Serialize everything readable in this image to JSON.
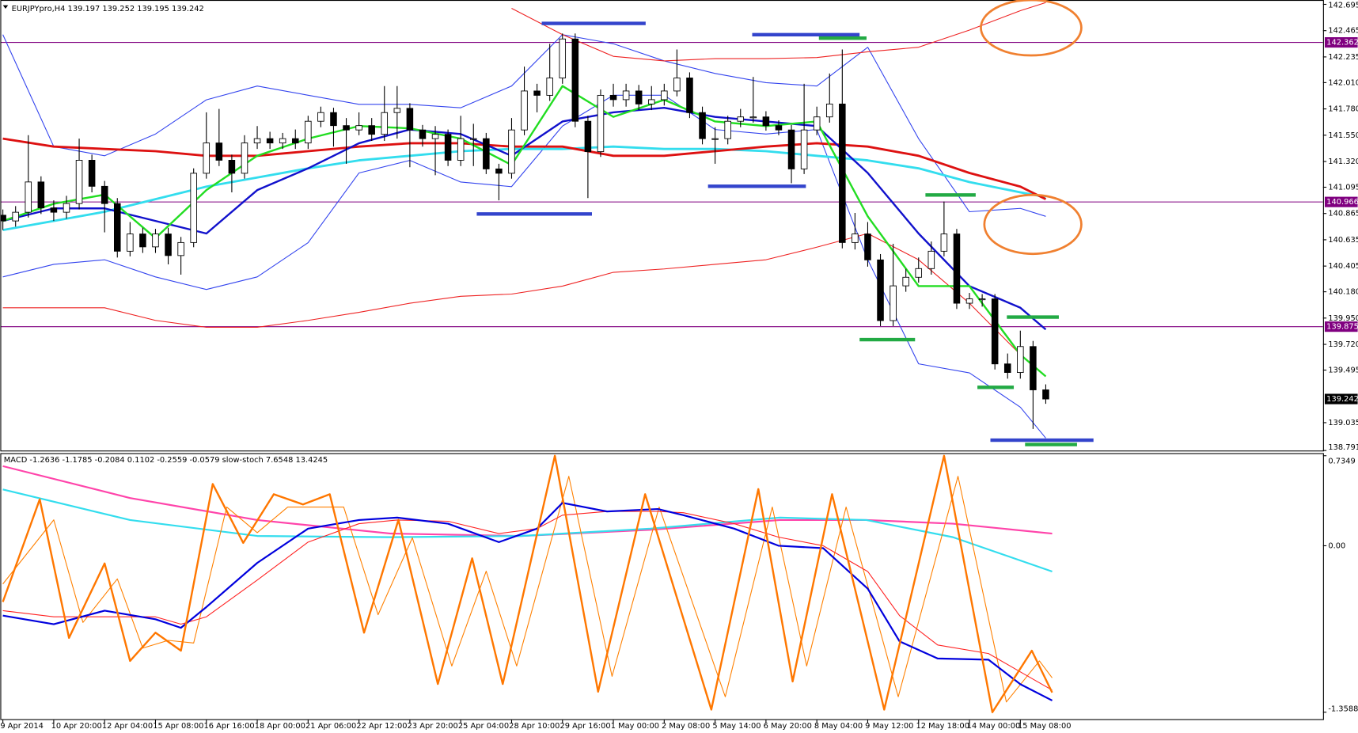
{
  "chart_data": [
    {
      "type": "candlestick",
      "title": "EURJPYpro,H4  139.197 139.252 139.195 139.242",
      "xlim": [
        -0.2,
        103.8
      ],
      "ylim": [
        138.791,
        142.733
      ],
      "yticks": [
        142.695,
        142.465,
        142.235,
        {
          "value": 142.01,
          "label": "142.010"
        },
        {
          "value": 141.78,
          "label": "141.780"
        },
        {
          "value": 141.55,
          "label": "141.550"
        },
        {
          "value": 141.32,
          "label": "141.320"
        },
        141.095,
        140.865,
        140.635,
        140.405,
        {
          "value": 140.18,
          "label": "140.180"
        },
        {
          "value": 139.95,
          "label": "139.950"
        },
        {
          "value": 139.72,
          "label": "139.720"
        },
        139.495,
        139.035,
        138.791
      ],
      "grid": false,
      "up_color": "#ffffff",
      "down_color": "#000000",
      "hlines": [
        142.362,
        140.966,
        139.875
      ],
      "hline_color": "#800080",
      "candles": {
        "open": [
          140.85,
          140.8,
          140.876,
          141.141,
          140.914,
          140.876,
          140.952,
          141.331,
          141.103,
          140.952,
          140.535,
          140.686,
          140.573,
          140.686,
          140.497,
          140.611,
          141.217,
          141.482,
          141.331,
          141.217,
          141.482,
          141.52,
          141.482,
          141.52,
          141.482,
          141.672,
          141.748,
          141.634,
          141.596,
          141.634,
          141.558,
          141.748,
          141.785,
          141.596,
          141.52,
          141.558,
          141.331,
          141.52,
          141.52,
          141.255,
          141.217,
          141.596,
          141.937,
          141.899,
          142.051,
          142.392,
          141.672,
          141.406,
          141.899,
          141.861,
          141.937,
          141.823,
          141.861,
          141.937,
          142.051,
          141.748,
          141.52,
          141.52,
          141.672,
          141.71,
          141.71,
          141.634,
          141.596,
          141.255,
          141.596,
          141.71,
          141.823,
          140.611,
          140.686,
          140.459,
          139.928,
          140.232,
          140.307,
          140.383,
          140.535,
          140.686,
          140.08,
          140.118,
          140.118,
          139.549,
          139.474,
          139.701,
          139.322
        ],
        "high": [
          140.9,
          140.93,
          141.55,
          141.19,
          140.98,
          141.02,
          141.52,
          141.38,
          141.15,
          141.0,
          140.79,
          140.74,
          140.73,
          140.74,
          140.66,
          141.26,
          141.75,
          141.78,
          141.38,
          141.55,
          141.63,
          141.58,
          141.57,
          141.6,
          141.72,
          141.8,
          141.79,
          141.7,
          141.75,
          141.7,
          141.98,
          141.98,
          141.83,
          141.64,
          141.63,
          141.6,
          141.72,
          141.65,
          141.57,
          141.3,
          141.7,
          142.15,
          142.0,
          142.35,
          142.44,
          142.44,
          141.72,
          141.95,
          142.0,
          142.0,
          141.99,
          141.98,
          142.0,
          142.3,
          142.1,
          141.8,
          141.62,
          141.72,
          141.78,
          142.06,
          141.76,
          141.68,
          141.64,
          142.0,
          141.8,
          142.09,
          142.3,
          140.87,
          140.79,
          140.51,
          140.6,
          140.38,
          140.48,
          140.62,
          140.97,
          140.73,
          140.17,
          140.16,
          140.16,
          139.64,
          139.84,
          139.75,
          139.37
        ],
        "low": [
          140.72,
          140.75,
          140.83,
          140.86,
          140.8,
          140.82,
          140.9,
          141.05,
          140.7,
          140.48,
          140.49,
          140.52,
          140.52,
          140.42,
          140.33,
          140.57,
          141.17,
          141.28,
          141.05,
          141.17,
          141.43,
          141.43,
          141.43,
          141.43,
          141.43,
          141.62,
          141.45,
          141.3,
          141.55,
          141.5,
          141.5,
          141.52,
          141.27,
          141.45,
          141.2,
          141.28,
          141.28,
          141.28,
          141.21,
          140.98,
          141.17,
          141.55,
          141.75,
          141.85,
          142.0,
          141.62,
          141.0,
          141.36,
          141.8,
          141.8,
          141.77,
          141.77,
          141.81,
          141.89,
          141.7,
          141.47,
          141.3,
          141.47,
          141.62,
          141.66,
          141.59,
          141.55,
          141.13,
          141.21,
          141.55,
          141.66,
          140.56,
          140.55,
          140.4,
          139.88,
          139.88,
          140.18,
          140.26,
          140.33,
          140.49,
          140.03,
          140.03,
          140.05,
          139.5,
          139.42,
          139.42,
          138.98,
          139.2
        ],
        "close": [
          140.8,
          140.876,
          141.141,
          140.914,
          140.876,
          140.952,
          141.331,
          141.103,
          140.952,
          140.535,
          140.686,
          140.573,
          140.686,
          140.497,
          140.611,
          141.217,
          141.482,
          141.331,
          141.217,
          141.482,
          141.52,
          141.482,
          141.52,
          141.482,
          141.672,
          141.748,
          141.634,
          141.596,
          141.634,
          141.558,
          141.748,
          141.785,
          141.596,
          141.52,
          141.558,
          141.331,
          141.52,
          141.52,
          141.255,
          141.217,
          141.596,
          141.937,
          141.899,
          142.051,
          142.392,
          141.672,
          141.406,
          141.899,
          141.861,
          141.937,
          141.823,
          141.861,
          141.937,
          142.051,
          141.748,
          141.52,
          141.52,
          141.672,
          141.71,
          141.71,
          141.634,
          141.596,
          141.255,
          141.596,
          141.71,
          141.823,
          140.611,
          140.686,
          140.459,
          139.928,
          140.232,
          140.307,
          140.383,
          140.535,
          140.686,
          140.08,
          140.118,
          140.118,
          139.549,
          139.474,
          139.701,
          139.322,
          139.242
        ]
      },
      "overlay_x": [
        0,
        4,
        8,
        12,
        16,
        20,
        24,
        28,
        32,
        36,
        40,
        44,
        48,
        52,
        56,
        60,
        64,
        68,
        72,
        76,
        80,
        82
      ],
      "overlays": [
        {
          "kind": "band",
          "color": "#3344ee",
          "values": [
            142.43,
            141.45,
            141.37,
            141.56,
            141.86,
            141.98,
            141.9,
            141.82,
            141.82,
            141.79,
            141.98,
            142.43,
            142.35,
            142.2,
            142.09,
            142.01,
            141.98,
            142.32,
            141.52,
            140.88,
            140.91,
            140.84
          ]
        },
        {
          "kind": "band",
          "color": "#3344ee",
          "values": [
            140.31,
            140.42,
            140.46,
            140.31,
            140.2,
            140.31,
            140.61,
            141.22,
            141.33,
            141.14,
            141.1,
            141.63,
            141.9,
            141.9,
            141.6,
            141.56,
            141.6,
            140.46,
            139.55,
            139.47,
            139.17,
            138.9
          ]
        },
        {
          "kind": "band",
          "color": "#ee2222",
          "values": [
            null,
            null,
            null,
            null,
            null,
            null,
            null,
            null,
            null,
            null,
            142.66,
            142.43,
            142.24,
            142.2,
            142.22,
            142.22,
            142.23,
            142.28,
            142.32,
            142.47,
            142.64,
            142.71
          ]
        },
        {
          "kind": "band",
          "color": "#ee2222",
          "values": [
            140.04,
            140.04,
            140.04,
            139.93,
            139.87,
            139.87,
            139.93,
            140.0,
            140.08,
            140.14,
            140.16,
            140.23,
            140.35,
            140.38,
            140.42,
            140.46,
            140.57,
            140.69,
            140.46,
            140.08,
            139.63,
            139.44
          ]
        },
        {
          "kind": "slow-average",
          "color": "#33ddee",
          "values": [
            140.72,
            140.8,
            140.88,
            140.99,
            141.1,
            141.18,
            141.26,
            141.33,
            141.37,
            141.41,
            141.43,
            141.43,
            141.45,
            141.43,
            141.43,
            141.41,
            141.37,
            141.33,
            141.26,
            141.14,
            141.05,
            141.01
          ]
        },
        {
          "kind": "slow-average",
          "color": "#dd1111",
          "values": [
            141.52,
            141.45,
            141.43,
            141.41,
            141.37,
            141.37,
            141.41,
            141.45,
            141.48,
            141.48,
            141.45,
            141.45,
            141.37,
            141.37,
            141.41,
            141.45,
            141.48,
            141.45,
            141.37,
            141.22,
            141.1,
            140.99
          ]
        },
        {
          "kind": "average",
          "color": "#1111cc",
          "values": [
            140.8,
            140.91,
            140.91,
            140.8,
            140.69,
            141.07,
            141.26,
            141.48,
            141.6,
            141.56,
            141.37,
            141.67,
            141.75,
            141.79,
            141.71,
            141.67,
            141.63,
            141.22,
            140.69,
            140.23,
            140.04,
            139.85
          ]
        },
        {
          "kind": "average",
          "color": "#22dd22",
          "values": [
            140.8,
            140.95,
            141.03,
            140.65,
            141.07,
            141.37,
            141.52,
            141.63,
            141.61,
            141.52,
            141.29,
            141.98,
            141.71,
            141.86,
            141.67,
            141.63,
            141.67,
            140.84,
            140.23,
            140.23,
            139.63,
            139.44
          ]
        }
      ]
    },
    {
      "type": "line",
      "title": "MACD -1.2636 -1.1785 -0.2084 0.1102 -0.2559 -0.0579 slow-stoch 7.6548 13.4245",
      "xlim": [
        -0.2,
        103.8
      ],
      "ylim": [
        -1.3588,
        0.7349
      ],
      "yticks": [
        0.7349,
        {
          "value": 0,
          "label": "0.00"
        },
        -1.3588
      ],
      "y2lim": [
        0,
        100
      ],
      "xticks": [
        {
          "value": 0,
          "label": "9 Apr 2014"
        },
        {
          "value": 4,
          "label": "10 Apr 20:00"
        },
        {
          "value": 8,
          "label": "12 Apr 04:00"
        },
        {
          "value": 12,
          "label": "15 Apr 08:00"
        },
        {
          "value": 16,
          "label": "16 Apr 16:00"
        },
        {
          "value": 20,
          "label": "18 Apr 00:00"
        },
        {
          "value": 24,
          "label": "21 Apr 06:00"
        },
        {
          "value": 28,
          "label": "22 Apr 12:00"
        },
        {
          "value": 32,
          "label": "23 Apr 20:00"
        },
        {
          "value": 36,
          "label": "25 Apr 04:00"
        },
        {
          "value": 40,
          "label": "28 Apr 10:00"
        },
        {
          "value": 44,
          "label": "29 Apr 16:00"
        },
        {
          "value": 48,
          "label": "1 May 00:00"
        },
        {
          "value": 52,
          "label": "2 May 08:00"
        },
        {
          "value": 56,
          "label": "5 May 14:00"
        },
        {
          "value": 60,
          "label": "6 May 20:00"
        },
        {
          "value": 64,
          "label": "8 May 04:00"
        },
        {
          "value": 68,
          "label": "9 May 12:00"
        },
        {
          "value": 72,
          "label": "12 May 18:00"
        },
        {
          "value": 76,
          "label": "14 May 00:00"
        },
        {
          "value": 80,
          "label": "15 May 08:00"
        }
      ],
      "series": [
        {
          "color": "#ff44aa",
          "x": [
            0,
            10,
            20,
            30.5,
            40.7,
            50.9,
            61.1,
            67.9,
            74.7,
            82.5
          ],
          "values": [
            0.65,
            0.39,
            0.21,
            0.1,
            0.08,
            0.13,
            0.21,
            0.21,
            0.18,
            0.1
          ]
        },
        {
          "color": "#33ddee",
          "x": [
            0,
            10,
            20,
            30.5,
            40.7,
            50.9,
            61.1,
            67.9,
            74.7,
            82.5
          ],
          "values": [
            0.46,
            0.21,
            0.08,
            0.07,
            0.08,
            0.14,
            0.23,
            0.21,
            0.07,
            -0.21
          ]
        },
        {
          "color": "#ff8000",
          "axis": "y2",
          "x": [
            0,
            4,
            6.3,
            9,
            11,
            13,
            15,
            17.6,
            20,
            22.4,
            24.7,
            26.8,
            29.5,
            32.2,
            35.3,
            38,
            40.4,
            44.5,
            47.9,
            51.6,
            56.8,
            60.5,
            63.2,
            66.3,
            70.4,
            75.1,
            78.9,
            81.5,
            82.5
          ],
          "values": [
            50,
            75,
            35,
            52,
            25,
            28,
            27,
            80,
            70,
            80,
            80,
            80,
            38,
            68,
            18,
            55,
            18,
            92,
            14,
            80,
            6,
            80,
            18,
            80,
            6,
            92,
            4,
            20,
            13.4245
          ]
        },
        {
          "color": "#ff2222",
          "x": [
            0,
            4,
            8,
            12,
            14,
            16,
            20,
            24,
            28,
            31,
            35,
            39,
            42,
            44,
            47.5,
            51.5,
            53.5,
            57.5,
            61,
            64.5,
            68,
            70.5,
            73.5,
            77.5,
            80,
            82.5
          ],
          "values": [
            -0.53,
            -0.58,
            -0.58,
            -0.58,
            -0.64,
            -0.58,
            -0.28,
            0.03,
            0.18,
            0.21,
            0.2,
            0.1,
            0.14,
            0.25,
            0.28,
            0.28,
            0.27,
            0.18,
            0.07,
            0.0,
            -0.21,
            -0.57,
            -0.81,
            -0.88,
            -1.03,
            -1.1785
          ]
        },
        {
          "color": "#0000dd",
          "x": [
            0,
            4,
            8,
            12,
            14,
            16,
            20,
            24,
            28,
            31,
            35,
            39,
            42,
            44,
            47.5,
            51.5,
            53.5,
            57.5,
            61,
            64.5,
            68,
            70.5,
            73.5,
            77.5,
            80,
            82.5
          ],
          "values": [
            -0.57,
            -0.64,
            -0.53,
            -0.6,
            -0.67,
            -0.5,
            -0.14,
            0.14,
            0.21,
            0.23,
            0.18,
            0.03,
            0.14,
            0.35,
            0.28,
            0.3,
            0.25,
            0.14,
            0.0,
            -0.02,
            -0.35,
            -0.78,
            -0.92,
            -0.93,
            -1.13,
            -1.2636
          ]
        },
        {
          "color": "#ff7700",
          "axis": "y2",
          "x": [
            0,
            2.9,
            5.2,
            8.0,
            10.0,
            12.0,
            14.0,
            16.5,
            18.9,
            21.3,
            23.6,
            25.7,
            28.4,
            31.1,
            34.2,
            36.9,
            39.3,
            43.4,
            46.8,
            50.5,
            55.7,
            59.4,
            62.1,
            65.2,
            69.3,
            74.0,
            77.8,
            80.9,
            82.5
          ],
          "values": [
            43,
            83,
            29,
            58,
            20,
            31,
            24,
            89,
            66,
            85,
            81,
            85,
            31,
            75,
            11,
            60,
            11,
            100,
            8,
            85,
            1,
            87,
            12,
            85,
            1,
            100,
            0,
            24,
            7.6548
          ]
        }
      ]
    }
  ]
}
